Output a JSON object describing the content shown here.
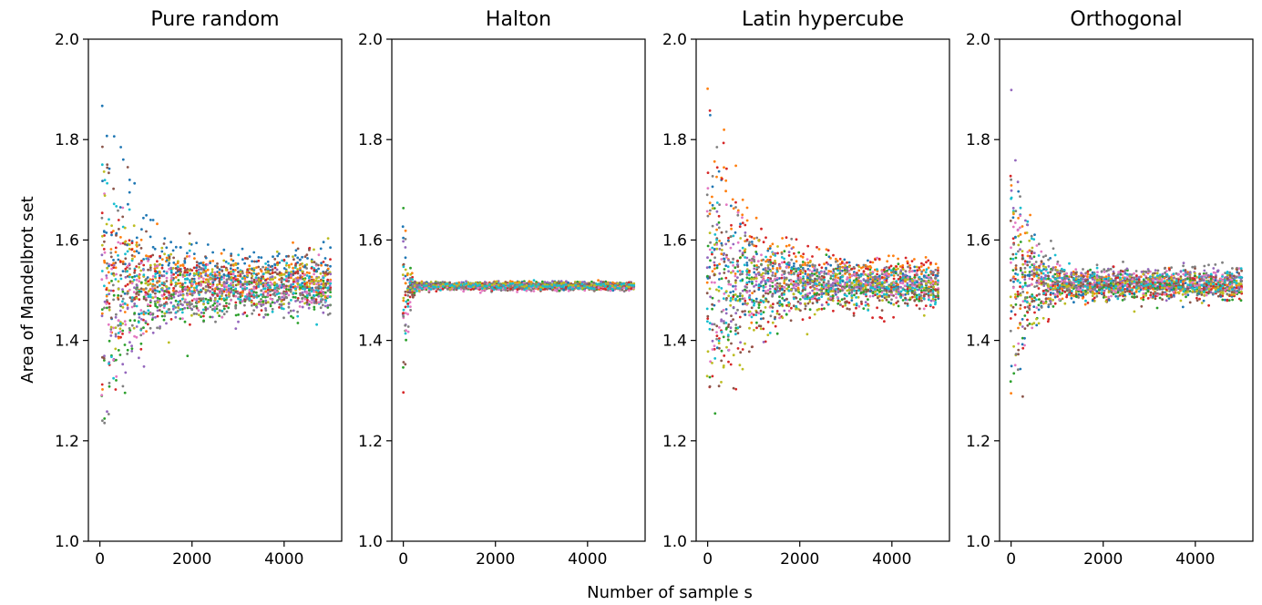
{
  "figure": {
    "ylabel": "Area of Mandelbrot set",
    "xlabel": "Number of sample s"
  },
  "palette": [
    "#1f77b4",
    "#ff7f0e",
    "#2ca02c",
    "#d62728",
    "#9467bd",
    "#8c564b",
    "#e377c2",
    "#7f7f7f",
    "#bcbd22",
    "#17becf"
  ],
  "chart_data": [
    {
      "type": "scatter",
      "title": "Pure random",
      "xlim": [
        -250,
        5250
      ],
      "ylim": [
        1.0,
        2.0
      ],
      "xticks": [
        0,
        2000,
        4000
      ],
      "xtick_labels": [
        "0",
        "2000",
        "4000"
      ],
      "yticks": [
        1.0,
        1.2,
        1.4,
        1.6,
        1.8,
        2.0
      ],
      "ytick_labels": [
        "1.0",
        "1.2",
        "1.4",
        "1.6",
        "1.8",
        "2.0"
      ],
      "converged_value": 1.51,
      "x_range": [
        50,
        5000
      ],
      "series_count": 20,
      "spread": {
        "start": 0.5,
        "end": 0.08,
        "decay_samples": 600
      }
    },
    {
      "type": "scatter",
      "title": "Halton",
      "xlim": [
        -250,
        5250
      ],
      "ylim": [
        1.0,
        2.0
      ],
      "xticks": [
        0,
        2000,
        4000
      ],
      "xtick_labels": [
        "0",
        "2000",
        "4000"
      ],
      "yticks": [
        1.0,
        1.2,
        1.4,
        1.6,
        1.8,
        2.0
      ],
      "ytick_labels": [
        "1.0",
        "1.2",
        "1.4",
        "1.6",
        "1.8",
        "2.0"
      ],
      "converged_value": 1.51,
      "x_range": [
        0,
        5000
      ],
      "series_count": 20,
      "spread": {
        "start": 0.35,
        "end": 0.012,
        "decay_samples": 80
      }
    },
    {
      "type": "scatter",
      "title": "Latin hypercube",
      "xlim": [
        -250,
        5250
      ],
      "ylim": [
        1.0,
        2.0
      ],
      "xticks": [
        0,
        2000,
        4000
      ],
      "xtick_labels": [
        "0",
        "2000",
        "4000"
      ],
      "yticks": [
        1.0,
        1.2,
        1.4,
        1.6,
        1.8,
        2.0
      ],
      "ytick_labels": [
        "1.0",
        "1.2",
        "1.4",
        "1.6",
        "1.8",
        "2.0"
      ],
      "converged_value": 1.51,
      "x_range": [
        0,
        5000
      ],
      "series_count": 20,
      "spread": {
        "start": 0.45,
        "end": 0.06,
        "decay_samples": 700
      }
    },
    {
      "type": "scatter",
      "title": "Orthogonal",
      "xlim": [
        -250,
        5250
      ],
      "ylim": [
        1.0,
        2.0
      ],
      "xticks": [
        0,
        2000,
        4000
      ],
      "xtick_labels": [
        "0",
        "2000",
        "4000"
      ],
      "yticks": [
        1.0,
        1.2,
        1.4,
        1.6,
        1.8,
        2.0
      ],
      "ytick_labels": [
        "1.0",
        "1.2",
        "1.4",
        "1.6",
        "1.8",
        "2.0"
      ],
      "converged_value": 1.51,
      "x_range": [
        0,
        5000
      ],
      "series_count": 20,
      "spread": {
        "start": 0.45,
        "end": 0.045,
        "decay_samples": 350
      }
    }
  ]
}
